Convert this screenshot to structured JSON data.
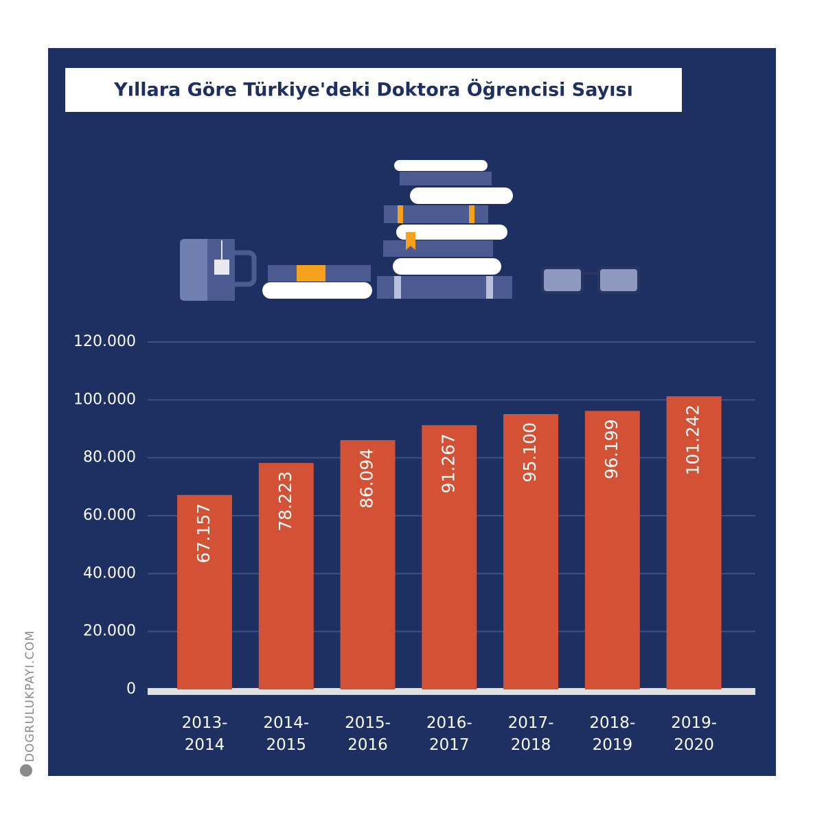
{
  "chart_data": {
    "type": "bar",
    "title": "Yıllara Göre Türkiye'deki Doktora Öğrencisi Sayısı",
    "categories": [
      "2013-2014",
      "2014-2015",
      "2015-2016",
      "2016-2017",
      "2017-2018",
      "2018-2019",
      "2019-2020"
    ],
    "values": [
      67157,
      78223,
      86094,
      91267,
      95100,
      96199,
      101242
    ],
    "value_labels": [
      "67.157",
      "78.223",
      "86.094",
      "91.267",
      "95.100",
      "96.199",
      "101.242"
    ],
    "color": "#d35134",
    "ylim": [
      0,
      120000
    ],
    "yticks": [
      0,
      {
        "value": 20000,
        "label": "20.000"
      },
      {
        "value": 40000,
        "label": "40.000"
      },
      {
        "value": 60000,
        "label": "60.000"
      },
      {
        "value": 80000,
        "label": "80.000"
      },
      {
        "value": 100000,
        "label": "100.000"
      },
      {
        "value": 120000,
        "label": "120.000"
      }
    ],
    "grid": true
  },
  "watermark": "DOGRULUKPAYI.COM"
}
